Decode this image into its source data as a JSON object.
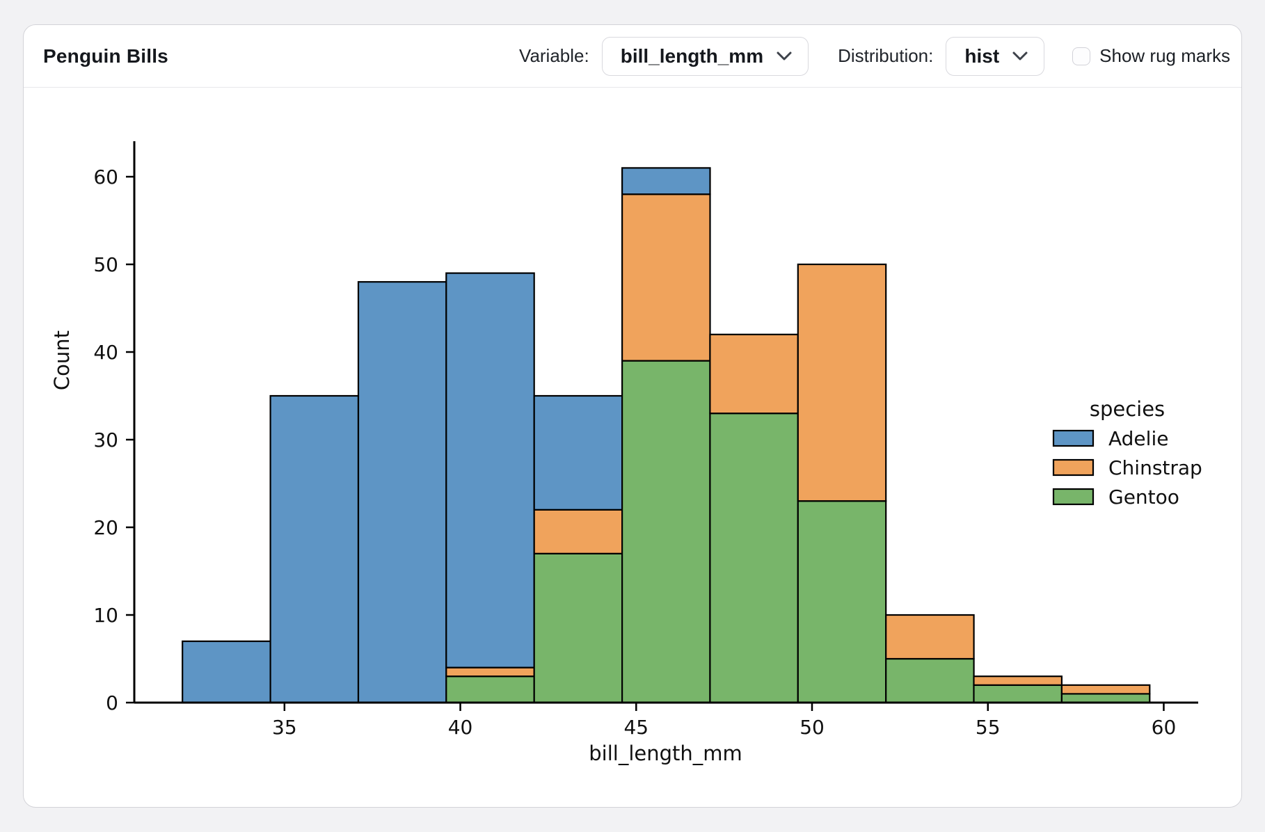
{
  "header": {
    "title": "Penguin Bills",
    "variable_label": "Variable:",
    "variable_value": "bill_length_mm",
    "distribution_label": "Distribution:",
    "distribution_value": "hist",
    "rug_label": "Show rug marks",
    "rug_checked": false
  },
  "colors": {
    "adelie": "#5e95c5",
    "chinstrap": "#f0a35c",
    "gentoo": "#78b56a",
    "bar_edge": "#000000",
    "axis": "#000000",
    "text": "#111111"
  },
  "chart_data": {
    "type": "bar",
    "subtype": "stacked-histogram",
    "title": "",
    "xlabel": "bill_length_mm",
    "ylabel": "Count",
    "bin_edges": [
      32.1,
      34.6,
      37.1,
      39.6,
      42.1,
      44.6,
      47.1,
      49.6,
      52.1,
      54.6,
      57.1,
      59.6
    ],
    "series": [
      {
        "name": "Adelie",
        "color": "#5e95c5",
        "values": [
          7,
          35,
          48,
          45,
          13,
          3,
          0,
          0,
          0,
          0,
          0
        ]
      },
      {
        "name": "Chinstrap",
        "color": "#f0a35c",
        "values": [
          0,
          0,
          0,
          1,
          5,
          19,
          9,
          27,
          5,
          1,
          1
        ]
      },
      {
        "name": "Gentoo",
        "color": "#78b56a",
        "values": [
          0,
          0,
          0,
          3,
          17,
          39,
          33,
          23,
          5,
          2,
          1
        ]
      }
    ],
    "stack_order_bottom_to_top": [
      "Gentoo",
      "Chinstrap",
      "Adelie"
    ],
    "bin_totals": [
      7,
      35,
      48,
      49,
      35,
      61,
      42,
      50,
      10,
      3,
      2
    ],
    "xticks": [
      35,
      40,
      45,
      50,
      55,
      60
    ],
    "yticks": [
      0,
      10,
      20,
      30,
      40,
      50,
      60
    ],
    "xlim": [
      30.73,
      60.98
    ],
    "ylim": [
      0,
      64.05
    ],
    "grid": false,
    "legend": {
      "title": "species",
      "entries": [
        "Adelie",
        "Chinstrap",
        "Gentoo"
      ],
      "position": "center-right"
    }
  }
}
